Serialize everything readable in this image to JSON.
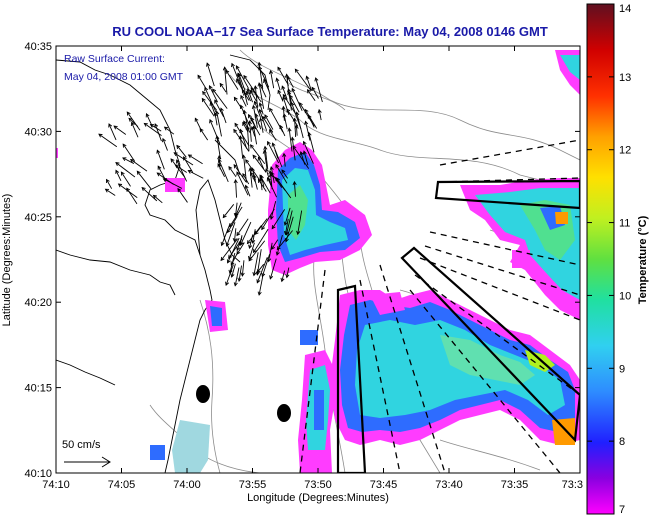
{
  "title": "RU COOL  NOAA−17  Sea Surface Temperature:  May 04, 2008 0146 GMT",
  "legend": {
    "line1": "Raw Surface Current:",
    "line2": "May 04, 2008 01:00 GMT"
  },
  "axes": {
    "xlabel": "Longitude (Degrees:Minutes)",
    "ylabel": "Latitude (Degrees:Minutes)",
    "x_ticks": [
      "74:10",
      "74:05",
      "74:00",
      "73:55",
      "73:50",
      "73:45",
      "73:40",
      "73:35",
      "73:3"
    ],
    "y_ticks": [
      "40:35",
      "40:30",
      "40:25",
      "40:20",
      "40:15",
      "40:10"
    ]
  },
  "scale_arrow": {
    "label": "50 cm/s"
  },
  "colorbar": {
    "label": "Temperature (°C)",
    "ticks": [
      "14",
      "13",
      "12",
      "11",
      "10",
      "9",
      "8",
      "7"
    ],
    "range": [
      7,
      14
    ],
    "colors": [
      "#6a0a1a",
      "#b00000",
      "#ff0000",
      "#ff8000",
      "#ffd000",
      "#d0f000",
      "#50e050",
      "#00d0b0",
      "#40c0ff",
      "#2060ff",
      "#0000ff",
      "#7000d0",
      "#ff00ff"
    ]
  },
  "colors": {
    "title": "#1a1aa8",
    "land": "#ffffff",
    "ocean_outline": "#808080",
    "vectors": "#000000"
  }
}
